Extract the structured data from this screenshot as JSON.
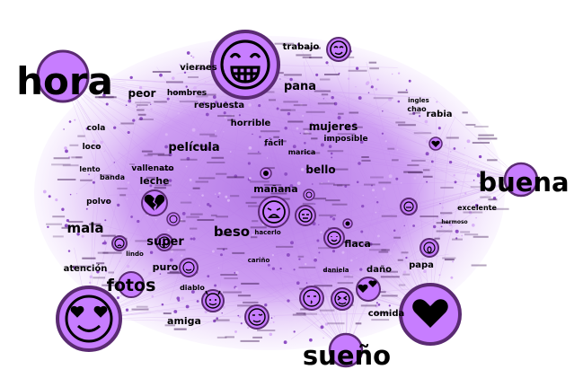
{
  "palette": {
    "background": "#ffffff",
    "node_fill": "#c77dff",
    "node_stroke": "#5a2a72",
    "edge": "#b57be0",
    "cloud": "#c896ec",
    "text": "#000000"
  },
  "words": {
    "hora": "hora",
    "buena": "buena",
    "sueno": "sueño",
    "fotos": "fotos",
    "mala": "mala",
    "beso": "beso",
    "pana": "pana",
    "trabajo": "trabajo",
    "viernes": "viernes",
    "peor": "peor",
    "hombres": "hombres",
    "respuesta": "respuesta",
    "horrible": "horrible",
    "mujeres": "mujeres",
    "imposible": "imposible",
    "rabia": "rabia",
    "chao": "chao",
    "ingles": "ingles",
    "cola": "cola",
    "pelicula": "película",
    "facil": "fácil",
    "marica": "marica",
    "vallenato": "vallenato",
    "bello": "bello",
    "leche": "leche",
    "manana": "mañana",
    "excelente": "excelente",
    "super": "super",
    "flaca": "flaca",
    "atencion": "atención",
    "puro": "puro",
    "papa": "papa",
    "dano": "daño",
    "amiga": "amiga",
    "comida": "comida",
    "loco": "loco",
    "polvo": "polvo",
    "banda": "banda",
    "lento": "lento",
    "hacerlo": "hacerlo",
    "hermoso": "hermoso",
    "carino": "cariño",
    "diablo": "diablo",
    "lindo": "lindo",
    "daniela": "daniela"
  },
  "emoji_nodes": [
    {
      "id": "laughing-face",
      "icon": "laughing-face-icon"
    },
    {
      "id": "heart-eyes",
      "icon": "heart-eyes-face-icon"
    },
    {
      "id": "big-heart",
      "icon": "heart-icon"
    },
    {
      "id": "crying",
      "icon": "crying-face-icon"
    },
    {
      "id": "smirk",
      "icon": "smirking-face-icon"
    },
    {
      "id": "broken-heart",
      "icon": "broken-heart-icon"
    },
    {
      "id": "neutral",
      "icon": "neutral-face-icon"
    },
    {
      "id": "kiss",
      "icon": "kissing-face-icon"
    },
    {
      "id": "two-hearts",
      "icon": "two-hearts-icon"
    }
  ]
}
